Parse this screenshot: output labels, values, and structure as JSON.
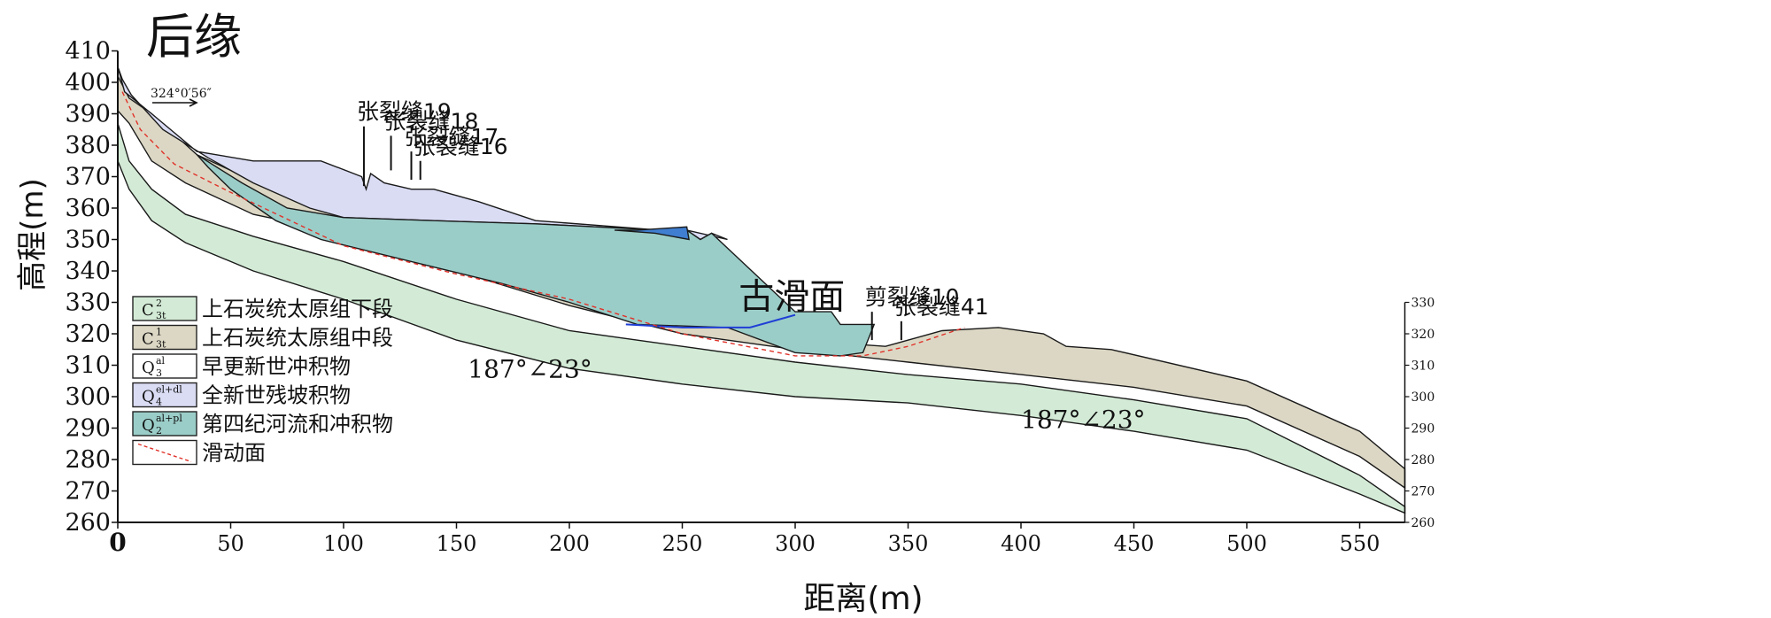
{
  "figure": {
    "title": "后缘",
    "y_axis_label": "高程(m)",
    "x_axis_label": "距离(m)",
    "direction_label": "324°0′56″"
  },
  "chart_data": {
    "type": "cross-section",
    "x_unit": "m",
    "y_unit": "m",
    "xlim": [
      0,
      570
    ],
    "ylim": [
      260,
      410
    ],
    "x_ticks": [
      0,
      50,
      100,
      150,
      200,
      250,
      300,
      350,
      400,
      450,
      500,
      550
    ],
    "y_ticks_left": [
      260,
      270,
      280,
      290,
      300,
      310,
      320,
      330,
      340,
      350,
      360,
      370,
      380,
      390,
      400,
      410
    ],
    "y_ticks_right": [
      260,
      270,
      280,
      290,
      300,
      310,
      320,
      330
    ],
    "layers": [
      {
        "name": "C3t2 lower",
        "color": "#d3ebd6",
        "top": [
          [
            0,
            387
          ],
          [
            5,
            375
          ],
          [
            15,
            366
          ],
          [
            30,
            358
          ],
          [
            60,
            351
          ],
          [
            100,
            343
          ],
          [
            150,
            331
          ],
          [
            200,
            321
          ],
          [
            250,
            316
          ],
          [
            300,
            311
          ],
          [
            350,
            307
          ],
          [
            400,
            304
          ],
          [
            450,
            299
          ],
          [
            500,
            293
          ],
          [
            550,
            275
          ],
          [
            570,
            265
          ]
        ],
        "bottom": [
          [
            570,
            263
          ],
          [
            550,
            269
          ],
          [
            500,
            283
          ],
          [
            450,
            289
          ],
          [
            400,
            294
          ],
          [
            350,
            298
          ],
          [
            300,
            300
          ],
          [
            250,
            304
          ],
          [
            200,
            309
          ],
          [
            150,
            318
          ],
          [
            100,
            331
          ],
          [
            60,
            340
          ],
          [
            30,
            349
          ],
          [
            15,
            356
          ],
          [
            5,
            366
          ],
          [
            0,
            375
          ]
        ]
      },
      {
        "name": "C3t1 middle",
        "color": "#dcd7c4",
        "top": [
          [
            0,
            402
          ],
          [
            5,
            395
          ],
          [
            15,
            390
          ],
          [
            35,
            377
          ],
          [
            50,
            372
          ],
          [
            80,
            362
          ],
          [
            120,
            355
          ],
          [
            180,
            342
          ],
          [
            230,
            332
          ],
          [
            270,
            322
          ],
          [
            300,
            318
          ],
          [
            340,
            316
          ],
          [
            365,
            321
          ],
          [
            390,
            322
          ],
          [
            410,
            320
          ],
          [
            420,
            316
          ],
          [
            440,
            315
          ],
          [
            500,
            305
          ],
          [
            550,
            289
          ],
          [
            570,
            277
          ]
        ],
        "bottom": [
          [
            570,
            271
          ],
          [
            550,
            281
          ],
          [
            500,
            297
          ],
          [
            450,
            303
          ],
          [
            400,
            307
          ],
          [
            350,
            311
          ],
          [
            300,
            315
          ],
          [
            250,
            320
          ],
          [
            200,
            329
          ],
          [
            150,
            340
          ],
          [
            100,
            352
          ],
          [
            60,
            358
          ],
          [
            30,
            368
          ],
          [
            15,
            375
          ],
          [
            5,
            387
          ],
          [
            0,
            391
          ]
        ]
      },
      {
        "name": "Q4el+dl",
        "color": "#dadcf4",
        "top": [
          [
            0,
            405
          ],
          [
            3,
            397
          ],
          [
            15,
            390
          ],
          [
            35,
            378
          ],
          [
            60,
            375
          ],
          [
            90,
            375
          ],
          [
            108,
            370
          ],
          [
            110,
            366
          ],
          [
            112,
            371
          ],
          [
            118,
            368
          ],
          [
            130,
            366
          ],
          [
            140,
            366
          ],
          [
            150,
            364
          ],
          [
            160,
            362
          ],
          [
            185,
            356
          ],
          [
            240,
            353
          ],
          [
            252,
            353
          ],
          [
            258,
            350
          ],
          [
            263,
            352
          ],
          [
            270,
            350
          ]
        ],
        "bottom": [
          [
            270,
            350
          ],
          [
            252,
            353
          ],
          [
            240,
            353
          ],
          [
            185,
            355
          ],
          [
            140,
            356
          ],
          [
            100,
            357
          ],
          [
            85,
            360
          ],
          [
            60,
            368
          ],
          [
            40,
            376
          ],
          [
            20,
            385
          ],
          [
            6,
            396
          ],
          [
            2,
            401
          ]
        ]
      },
      {
        "name": "Q2al+pl",
        "color": "#9bcdc8",
        "top": [
          [
            35,
            377
          ],
          [
            55,
            368
          ],
          [
            75,
            360
          ],
          [
            100,
            357
          ],
          [
            140,
            356
          ],
          [
            185,
            355
          ],
          [
            240,
            353
          ],
          [
            252,
            353
          ],
          [
            258,
            350
          ],
          [
            263,
            352
          ],
          [
            300,
            327
          ],
          [
            316,
            327
          ],
          [
            320,
            323
          ],
          [
            335,
            323
          ]
        ],
        "bottom": [
          [
            335,
            323
          ],
          [
            330,
            314
          ],
          [
            320,
            313
          ],
          [
            300,
            314
          ],
          [
            270,
            322
          ],
          [
            230,
            323
          ],
          [
            200,
            330
          ],
          [
            170,
            336
          ],
          [
            130,
            343
          ],
          [
            90,
            350
          ],
          [
            70,
            356
          ],
          [
            50,
            366
          ],
          [
            40,
            373
          ]
        ]
      },
      {
        "name": "Q3al lens",
        "color": "#3f7ed0",
        "top": [
          [
            220,
            353
          ],
          [
            230,
            353
          ],
          [
            252,
            354
          ],
          [
            253,
            350
          ]
        ],
        "bottom": [
          [
            253,
            350
          ],
          [
            238,
            352
          ],
          [
            220,
            353
          ]
        ]
      }
    ],
    "sliding_surfaces": [
      {
        "type": "ancient-blue",
        "points": [
          [
            225,
            323
          ],
          [
            250,
            322
          ],
          [
            280,
            322
          ],
          [
            300,
            326
          ]
        ]
      },
      {
        "type": "red-dashed",
        "points": [
          [
            2,
            397
          ],
          [
            10,
            385
          ],
          [
            25,
            374
          ],
          [
            50,
            365
          ],
          [
            100,
            348
          ],
          [
            150,
            339
          ],
          [
            200,
            331
          ],
          [
            250,
            320
          ],
          [
            300,
            313
          ],
          [
            330,
            313
          ],
          [
            350,
            316
          ],
          [
            375,
            322
          ]
        ]
      }
    ],
    "cracks": [
      {
        "label": "张裂缝19",
        "x": 109,
        "y_base": 367,
        "y_top": 386
      },
      {
        "label": "张裂缝18",
        "x": 121,
        "y_base": 372,
        "y_top": 383
      },
      {
        "label": "张裂缝17",
        "x": 130,
        "y_base": 369,
        "y_top": 378
      },
      {
        "label": "张裂缝16",
        "x": 134,
        "y_base": 369,
        "y_top": 375
      },
      {
        "label": "剪裂缝10",
        "x": 334,
        "y_base": 318,
        "y_top": 327
      },
      {
        "label": "张裂缝41",
        "x": 347,
        "y_base": 318,
        "y_top": 324
      }
    ],
    "annotations": [
      {
        "text": "古滑面",
        "x": 275,
        "y": 328
      },
      {
        "text": "187°∠23°",
        "x": 155,
        "y": 306
      },
      {
        "text": "187°∠23°",
        "x": 400,
        "y": 290
      }
    ],
    "legend": [
      {
        "symbol": "C",
        "sup": "2",
        "sub": "3t",
        "label": "上石炭统太原组下段",
        "color": "#d3ebd6"
      },
      {
        "symbol": "C",
        "sup": "1",
        "sub": "3t",
        "label": "上石炭统太原组中段",
        "color": "#dcd7c4"
      },
      {
        "symbol": "Q",
        "sup": "al",
        "sub": "3",
        "label": "早更新世冲积物",
        "color": "#ffffff"
      },
      {
        "symbol": "Q",
        "sup": "el+dl",
        "sub": "4",
        "label": "全新世残坡积物",
        "color": "#dadcf4"
      },
      {
        "symbol": "Q",
        "sup": "al+pl",
        "sub": "2",
        "label": "第四纪河流和冲积物",
        "color": "#9bcdc8"
      },
      {
        "symbol": "",
        "sup": "",
        "sub": "",
        "label": "滑动面",
        "color": "#ffffff"
      }
    ]
  }
}
